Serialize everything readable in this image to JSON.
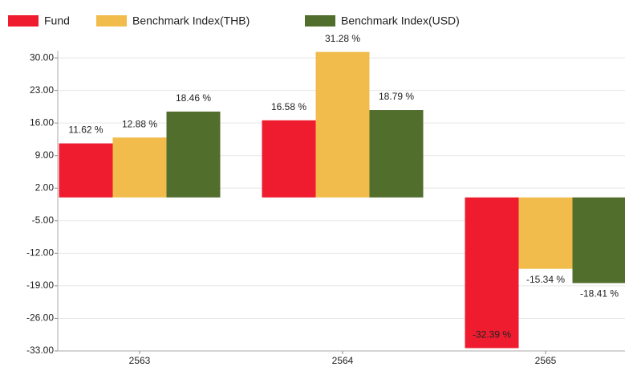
{
  "chart_data": {
    "type": "bar",
    "categories": [
      "2563",
      "2564",
      "2565"
    ],
    "series": [
      {
        "name": "Fund",
        "color": "#ee1c2e",
        "values": [
          11.62,
          16.58,
          -32.39
        ],
        "value_labels": [
          "11.62 %",
          "16.58 %",
          "-32.39 %"
        ]
      },
      {
        "name": "Benchmark Index(THB)",
        "color": "#f1bc4b",
        "values": [
          12.88,
          31.28,
          -15.34
        ],
        "value_labels": [
          "12.88 %",
          "31.28 %",
          "-15.34 %"
        ]
      },
      {
        "name": "Benchmark Index(USD)",
        "color": "#526e2d",
        "values": [
          18.46,
          18.79,
          -18.41
        ],
        "value_labels": [
          "18.46 %",
          "18.79 %",
          "-18.41 %"
        ]
      }
    ],
    "ylim": [
      -33,
      31.5
    ],
    "yticks": [
      {
        "value": 30,
        "label": "30.00"
      },
      {
        "value": 23,
        "label": "23.00"
      },
      {
        "value": 16,
        "label": "16.00"
      },
      {
        "value": 9,
        "label": "9.00"
      },
      {
        "value": 2,
        "label": "2.00"
      },
      {
        "value": -5,
        "label": "-5.00"
      },
      {
        "value": -12,
        "label": "-12.00"
      },
      {
        "value": -19,
        "label": "-19.00"
      },
      {
        "value": -26,
        "label": "-26.00"
      },
      {
        "value": -33,
        "label": "-33.00"
      }
    ],
    "grid": true,
    "legend": "top"
  }
}
